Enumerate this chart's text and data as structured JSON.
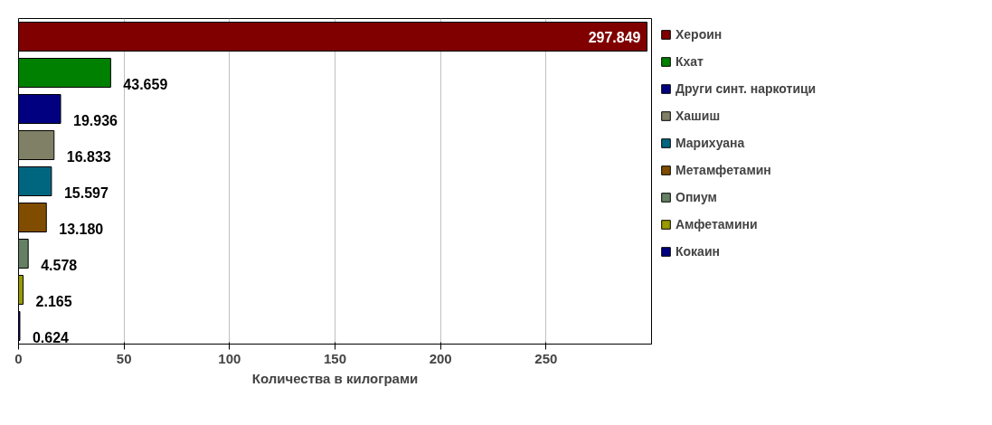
{
  "chart_data": {
    "type": "bar",
    "orientation": "horizontal",
    "xlabel": "Количества в килограми",
    "categories": [
      null,
      null,
      null,
      null,
      null,
      null,
      null,
      null,
      null
    ],
    "series": [
      {
        "name": "Хероин",
        "color": "#800000",
        "values": [
          297.849,
          null,
          null,
          null,
          null,
          null,
          null,
          null,
          null
        ]
      },
      {
        "name": "Кхат",
        "color": "#008000",
        "values": [
          null,
          43.659,
          null,
          null,
          null,
          null,
          null,
          null,
          null
        ]
      },
      {
        "name": "Други синт. наркотици",
        "color": "#000080",
        "values": [
          null,
          null,
          19.936,
          null,
          null,
          null,
          null,
          null,
          null
        ]
      },
      {
        "name": "Хашиш",
        "color": "#808066",
        "values": [
          null,
          null,
          null,
          16.833,
          null,
          null,
          null,
          null,
          null
        ]
      },
      {
        "name": "Марихуана",
        "color": "#006680",
        "values": [
          null,
          null,
          null,
          null,
          15.597,
          null,
          null,
          null,
          null
        ]
      },
      {
        "name": "Метамфетамин",
        "color": "#804d00",
        "values": [
          null,
          null,
          null,
          null,
          null,
          13.18,
          null,
          null,
          null
        ]
      },
      {
        "name": "Опиум",
        "color": "#668066",
        "values": [
          null,
          null,
          null,
          null,
          null,
          null,
          4.578,
          null,
          null
        ]
      },
      {
        "name": "Амфетамини",
        "color": "#999900",
        "values": [
          null,
          null,
          null,
          null,
          null,
          null,
          null,
          2.165,
          null
        ]
      },
      {
        "name": "Кокаин",
        "color": "#000080",
        "values": [
          null,
          null,
          null,
          null,
          null,
          null,
          null,
          null,
          0.624
        ]
      }
    ],
    "value_labels": [
      "297.849",
      "43.659",
      "19.936",
      "16.833",
      "15.597",
      "13.180",
      "4.578",
      "2.165",
      "0.624"
    ],
    "xlim": [
      0,
      300
    ],
    "xticks": [
      0,
      50,
      100,
      150,
      200,
      250
    ],
    "grid": "x",
    "legend": "right"
  }
}
